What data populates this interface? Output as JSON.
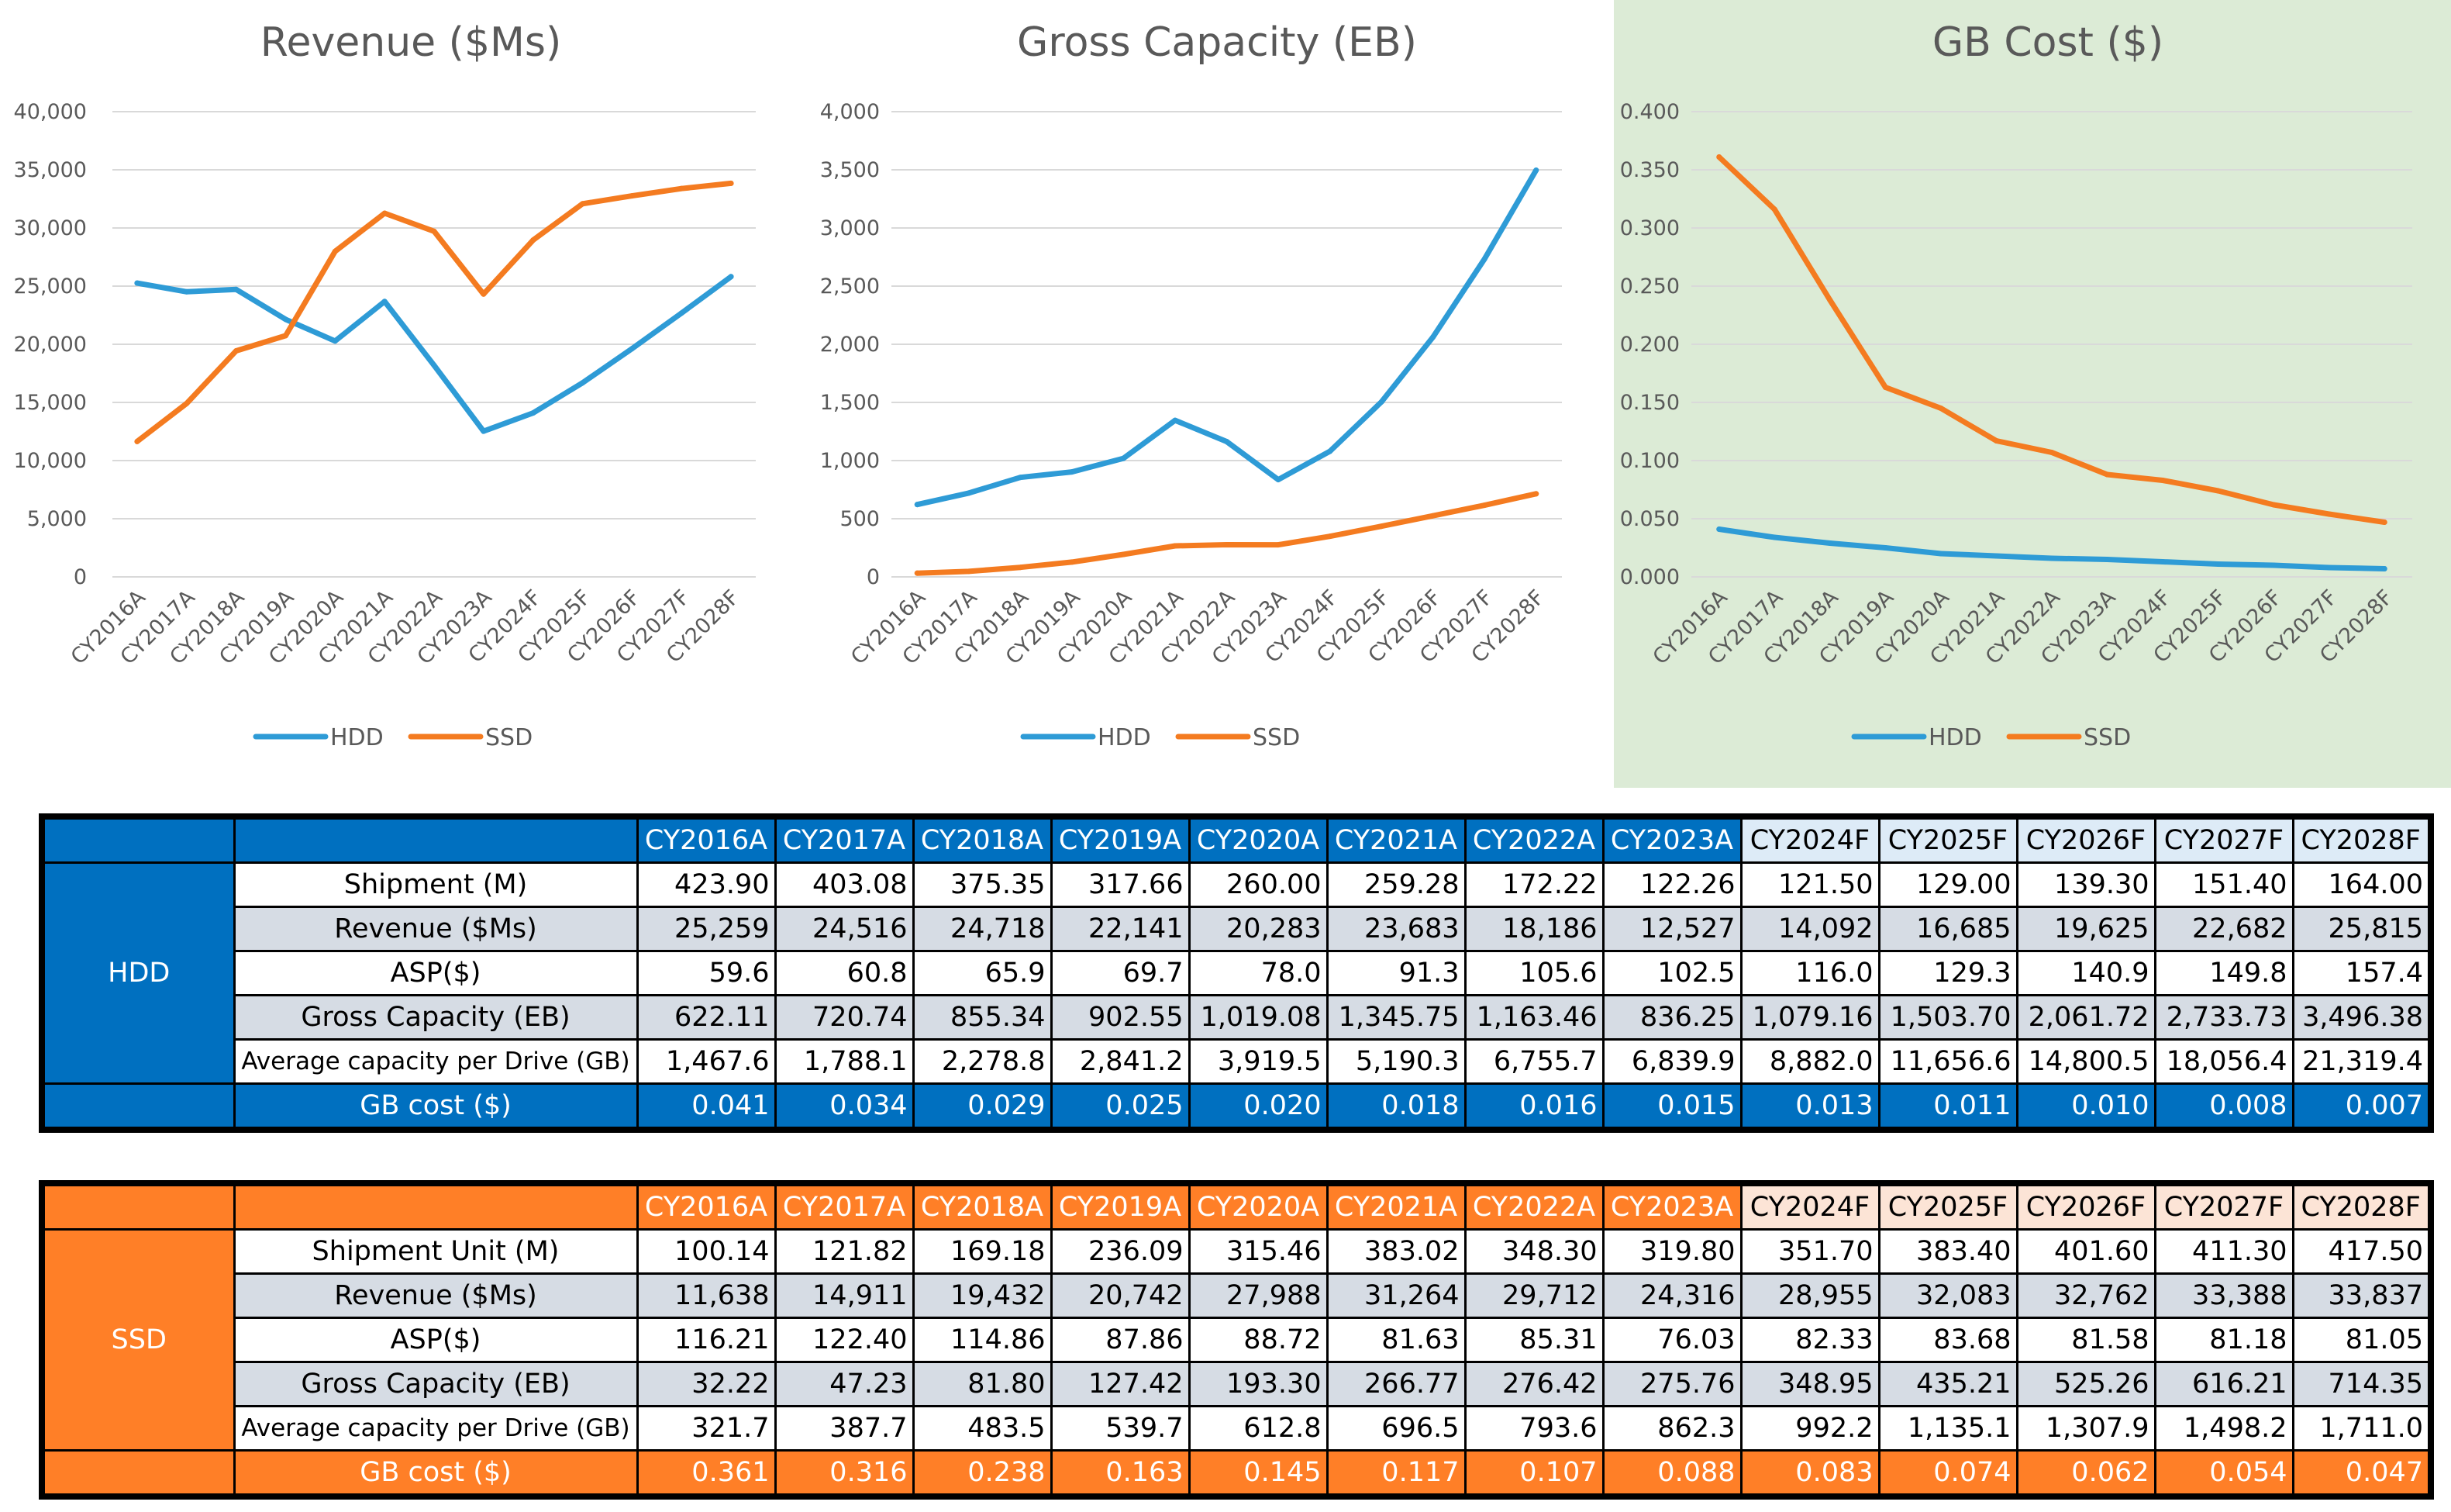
{
  "years": [
    "CY2016A",
    "CY2017A",
    "CY2018A",
    "CY2019A",
    "CY2020A",
    "CY2021A",
    "CY2022A",
    "CY2023A",
    "CY2024F",
    "CY2025F",
    "CY2026F",
    "CY2027F",
    "CY2028F"
  ],
  "colors": {
    "hdd": "#2e9bd6",
    "ssd": "#f47b20",
    "hdd_table": "#0070c0",
    "ssd_table": "#ff7f27",
    "gb_panel_bg": "#dcebd6"
  },
  "chart_data": [
    {
      "type": "line",
      "title": "Revenue ($Ms)",
      "categories": [
        "CY2016A",
        "CY2017A",
        "CY2018A",
        "CY2019A",
        "CY2020A",
        "CY2021A",
        "CY2022A",
        "CY2023A",
        "CY2024F",
        "CY2025F",
        "CY2026F",
        "CY2027F",
        "CY2028F"
      ],
      "series": [
        {
          "name": "HDD",
          "values": [
            25259,
            24516,
            24718,
            22141,
            20283,
            23683,
            18186,
            12527,
            14092,
            16685,
            19625,
            22682,
            25815
          ]
        },
        {
          "name": "SSD",
          "values": [
            11638,
            14911,
            19432,
            20742,
            27988,
            31264,
            29712,
            24316,
            28955,
            32083,
            32762,
            33388,
            33837
          ]
        }
      ],
      "ylim": [
        0,
        40000
      ],
      "yticks": [
        "0",
        "5,000",
        "10,000",
        "15,000",
        "20,000",
        "25,000",
        "30,000",
        "35,000",
        "40,000"
      ],
      "grid": true,
      "legend": "bottom"
    },
    {
      "type": "line",
      "title": "Gross Capacity (EB)",
      "categories": [
        "CY2016A",
        "CY2017A",
        "CY2018A",
        "CY2019A",
        "CY2020A",
        "CY2021A",
        "CY2022A",
        "CY2023A",
        "CY2024F",
        "CY2025F",
        "CY2026F",
        "CY2027F",
        "CY2028F"
      ],
      "series": [
        {
          "name": "HDD",
          "values": [
            622.11,
            720.74,
            855.34,
            902.55,
            1019.08,
            1345.75,
            1163.46,
            836.25,
            1079.16,
            1503.7,
            2061.72,
            2733.73,
            3496.38
          ]
        },
        {
          "name": "SSD",
          "values": [
            32.22,
            47.23,
            81.8,
            127.42,
            193.3,
            266.77,
            276.42,
            275.76,
            348.95,
            435.21,
            525.26,
            616.21,
            714.35
          ]
        }
      ],
      "ylim": [
        0,
        4000
      ],
      "yticks": [
        "0",
        "500",
        "1,000",
        "1,500",
        "2,000",
        "2,500",
        "3,000",
        "3,500",
        "4,000"
      ],
      "grid": true,
      "legend": "bottom"
    },
    {
      "type": "line",
      "title": "GB Cost ($)",
      "categories": [
        "CY2016A",
        "CY2017A",
        "CY2018A",
        "CY2019A",
        "CY2020A",
        "CY2021A",
        "CY2022A",
        "CY2023A",
        "CY2024F",
        "CY2025F",
        "CY2026F",
        "CY2027F",
        "CY2028F"
      ],
      "series": [
        {
          "name": "HDD",
          "values": [
            0.041,
            0.034,
            0.029,
            0.025,
            0.02,
            0.018,
            0.016,
            0.015,
            0.013,
            0.011,
            0.01,
            0.008,
            0.007
          ]
        },
        {
          "name": "SSD",
          "values": [
            0.361,
            0.316,
            0.238,
            0.163,
            0.145,
            0.117,
            0.107,
            0.088,
            0.083,
            0.074,
            0.062,
            0.054,
            0.047
          ]
        }
      ],
      "ylim": [
        0,
        0.4
      ],
      "yticks": [
        "0.000",
        "0.050",
        "0.100",
        "0.150",
        "0.200",
        "0.250",
        "0.300",
        "0.350",
        "0.400"
      ],
      "grid": true,
      "legend": "bottom"
    }
  ],
  "tables": {
    "hdd": {
      "segment": "HDD",
      "rows": [
        {
          "label": "Shipment (M)",
          "values": [
            "423.90",
            "403.08",
            "375.35",
            "317.66",
            "260.00",
            "259.28",
            "172.22",
            "122.26",
            "121.50",
            "129.00",
            "139.30",
            "151.40",
            "164.00"
          ]
        },
        {
          "label": "Revenue ($Ms)",
          "values": [
            "25,259",
            "24,516",
            "24,718",
            "22,141",
            "20,283",
            "23,683",
            "18,186",
            "12,527",
            "14,092",
            "16,685",
            "19,625",
            "22,682",
            "25,815"
          ]
        },
        {
          "label": "ASP($)",
          "values": [
            "59.6",
            "60.8",
            "65.9",
            "69.7",
            "78.0",
            "91.3",
            "105.6",
            "102.5",
            "116.0",
            "129.3",
            "140.9",
            "149.8",
            "157.4"
          ]
        },
        {
          "label": "Gross Capacity (EB)",
          "values": [
            "622.11",
            "720.74",
            "855.34",
            "902.55",
            "1,019.08",
            "1,345.75",
            "1,163.46",
            "836.25",
            "1,079.16",
            "1,503.70",
            "2,061.72",
            "2,733.73",
            "3,496.38"
          ]
        },
        {
          "label": "Average capacity per Drive (GB)",
          "values": [
            "1,467.6",
            "1,788.1",
            "2,278.8",
            "2,841.2",
            "3,919.5",
            "5,190.3",
            "6,755.7",
            "6,839.9",
            "8,882.0",
            "11,656.6",
            "14,800.5",
            "18,056.4",
            "21,319.4"
          ]
        }
      ],
      "gb_cost": {
        "label": "GB cost ($)",
        "values": [
          "0.041",
          "0.034",
          "0.029",
          "0.025",
          "0.020",
          "0.018",
          "0.016",
          "0.015",
          "0.013",
          "0.011",
          "0.010",
          "0.008",
          "0.007"
        ]
      }
    },
    "ssd": {
      "segment": "SSD",
      "rows": [
        {
          "label": "Shipment Unit (M)",
          "values": [
            "100.14",
            "121.82",
            "169.18",
            "236.09",
            "315.46",
            "383.02",
            "348.30",
            "319.80",
            "351.70",
            "383.40",
            "401.60",
            "411.30",
            "417.50"
          ]
        },
        {
          "label": "Revenue ($Ms)",
          "values": [
            "11,638",
            "14,911",
            "19,432",
            "20,742",
            "27,988",
            "31,264",
            "29,712",
            "24,316",
            "28,955",
            "32,083",
            "32,762",
            "33,388",
            "33,837"
          ]
        },
        {
          "label": "ASP($)",
          "values": [
            "116.21",
            "122.40",
            "114.86",
            "87.86",
            "88.72",
            "81.63",
            "85.31",
            "76.03",
            "82.33",
            "83.68",
            "81.58",
            "81.18",
            "81.05"
          ]
        },
        {
          "label": "Gross Capacity (EB)",
          "values": [
            "32.22",
            "47.23",
            "81.80",
            "127.42",
            "193.30",
            "266.77",
            "276.42",
            "275.76",
            "348.95",
            "435.21",
            "525.26",
            "616.21",
            "714.35"
          ]
        },
        {
          "label": "Average capacity per Drive (GB)",
          "values": [
            "321.7",
            "387.7",
            "483.5",
            "539.7",
            "612.8",
            "696.5",
            "793.6",
            "862.3",
            "992.2",
            "1,135.1",
            "1,307.9",
            "1,498.2",
            "1,711.0"
          ]
        }
      ],
      "gb_cost": {
        "label": "GB cost ($)",
        "values": [
          "0.361",
          "0.316",
          "0.238",
          "0.163",
          "0.145",
          "0.117",
          "0.107",
          "0.088",
          "0.083",
          "0.074",
          "0.062",
          "0.054",
          "0.047"
        ]
      }
    }
  }
}
